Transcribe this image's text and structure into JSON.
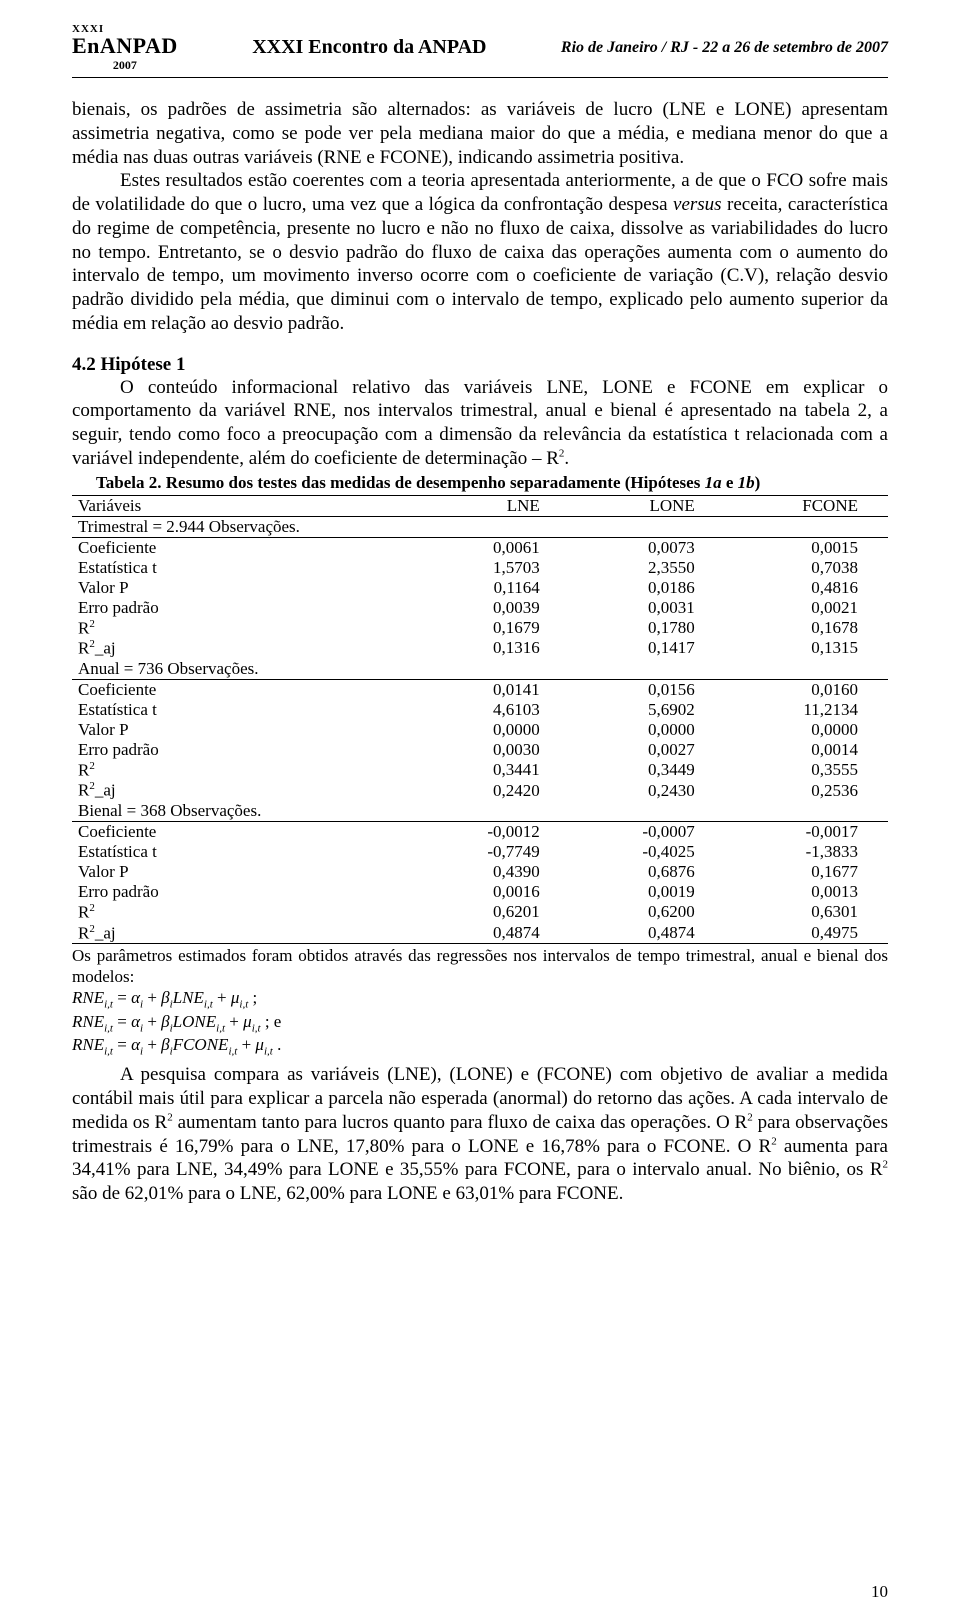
{
  "header": {
    "logo_small": "XXXI",
    "logo_big": "EnANPAD",
    "logo_year": "2007",
    "center": "XXXI Encontro da ANPAD",
    "right": "Rio de Janeiro / RJ - 22 a 26 de setembro de 2007"
  },
  "para1": "bienais, os padrões de assimetria são alternados: as variáveis de lucro (LNE e LONE) apresentam assimetria negativa, como se pode ver pela mediana maior do que a média, e mediana menor do que a média nas duas outras variáveis (RNE e FCONE), indicando assimetria positiva.",
  "para2_a": "Estes resultados estão coerentes com a teoria apresentada anteriormente, a de que o FCO sofre mais de volatilidade do que o lucro, uma vez que a lógica da confrontação despesa ",
  "para2_em": "versus",
  "para2_b": " receita, característica do regime de competência, presente no lucro e não no fluxo de caixa, dissolve as variabilidades do lucro no tempo. Entretanto, se o desvio padrão do fluxo de caixa das operações aumenta com o aumento do intervalo de tempo, um movimento inverso ocorre com o coeficiente de variação (C.V), relação desvio padrão dividido pela média, que diminui com o intervalo de tempo, explicado pelo aumento superior da média em relação ao desvio padrão.",
  "h4": "4.2 Hipótese 1",
  "para3_a": "O conteúdo informacional relativo das variáveis LNE, LONE e FCONE em explicar o comportamento da variável RNE, nos intervalos trimestral, anual e bienal é apresentado na tabela 2, a seguir, tendo como foco a preocupação com a dimensão da relevância da estatística t relacionada com a variável independente, além do coeficiente de determinação – R",
  "para3_b": ".",
  "table": {
    "title_a": "Tabela 2. Resumo dos testes das medidas de desempenho separadamente (Hipóteses ",
    "title_em": "1a",
    "title_mid": " e ",
    "title_em2": "1b",
    "title_end": ")",
    "head_var": "Variáveis",
    "cols": [
      "LNE",
      "LONE",
      "FCONE"
    ],
    "sections": [
      {
        "label": "Trimestral = 2.944 Observações.",
        "rows": [
          {
            "label": "Coeficiente",
            "vals": [
              "0,0061",
              "0,0073",
              "0,0015"
            ]
          },
          {
            "label": "Estatística t",
            "vals": [
              "1,5703",
              "2,3550",
              "0,7038"
            ]
          },
          {
            "label": "Valor P",
            "vals": [
              "0,1164",
              "0,0186",
              "0,4816"
            ]
          },
          {
            "label": "Erro padrão",
            "vals": [
              "0,0039",
              "0,0031",
              "0,0021"
            ]
          },
          {
            "label": "R²",
            "vals": [
              "0,1679",
              "0,1780",
              "0,1678"
            ]
          },
          {
            "label": "R²_aj",
            "vals": [
              "0,1316",
              "0,1417",
              "0,1315"
            ]
          }
        ]
      },
      {
        "label": "Anual = 736 Observações.",
        "rows": [
          {
            "label": "Coeficiente",
            "vals": [
              "0,0141",
              "0,0156",
              "0,0160"
            ]
          },
          {
            "label": "Estatística t",
            "vals": [
              "4,6103",
              "5,6902",
              "11,2134"
            ]
          },
          {
            "label": "Valor P",
            "vals": [
              "0,0000",
              "0,0000",
              "0,0000"
            ]
          },
          {
            "label": "Erro padrão",
            "vals": [
              "0,0030",
              "0,0027",
              "0,0014"
            ]
          },
          {
            "label": "R²",
            "vals": [
              "0,3441",
              "0,3449",
              "0,3555"
            ]
          },
          {
            "label": "R²_aj",
            "vals": [
              "0,2420",
              "0,2430",
              "0,2536"
            ]
          }
        ]
      },
      {
        "label": "Bienal = 368 Observações.",
        "rows": [
          {
            "label": "Coeficiente",
            "vals": [
              "-0,0012",
              "-0,0007",
              "-0,0017"
            ]
          },
          {
            "label": "Estatística t",
            "vals": [
              "-0,7749",
              "-0,4025",
              "-1,3833"
            ]
          },
          {
            "label": "Valor P",
            "vals": [
              "0,4390",
              "0,6876",
              "0,1677"
            ]
          },
          {
            "label": "Erro padrão",
            "vals": [
              "0,0016",
              "0,0019",
              "0,0013"
            ]
          },
          {
            "label": "R²",
            "vals": [
              "0,6201",
              "0,6200",
              "0,6301"
            ]
          },
          {
            "label": "R²_aj",
            "vals": [
              "0,4874",
              "0,4874",
              "0,4975"
            ]
          }
        ]
      }
    ]
  },
  "note": "Os parâmetros estimados foram obtidos através das regressões nos intervalos de tempo trimestral, anual e bienal dos modelos:",
  "eq_trailers": [
    " ;",
    " ; e",
    " ."
  ],
  "eq_terms": [
    "LNE",
    "LONE",
    "FCONE"
  ],
  "para4_a": "A pesquisa compara as variáveis (LNE), (LONE) e (FCONE) com objetivo de avaliar a medida contábil mais útil para explicar a parcela não esperada (anormal) do retorno das ações. A cada intervalo de medida os R",
  "para4_b": " aumentam tanto para lucros quanto para fluxo de caixa das operações. O R",
  "para4_c": " para observações trimestrais é 16,79% para o LNE, 17,80% para o LONE e 16,78% para o FCONE. O R",
  "para4_d": " aumenta para 34,41% para LNE, 34,49% para LONE e 35,55% para FCONE, para o intervalo anual. No biênio, os R",
  "para4_e": " são de 62,01% para o LNE, 62,00% para LONE e 63,01% para FCONE.",
  "pagenum": "10"
}
